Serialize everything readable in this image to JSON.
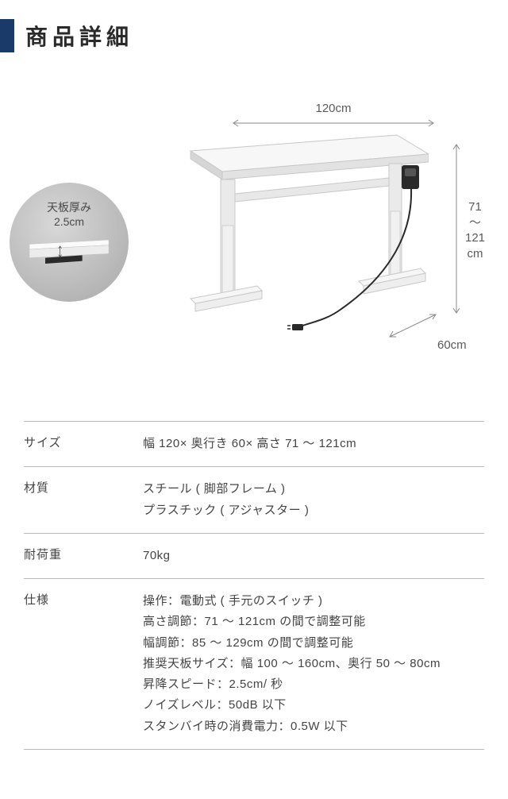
{
  "header": {
    "title": "商品詳細",
    "accent_color": "#1a3a6a",
    "title_color": "#2a2a2a"
  },
  "diagram": {
    "width_label": "120cm",
    "height_label": "71\n〜\n121\ncm",
    "depth_label": "60cm",
    "inset_label_line1": "天板厚み",
    "inset_label_line2": "2.5cm",
    "dim_line_color": "#8a8a8a",
    "desk_outline_color": "#bdbdbd",
    "desk_fill_light": "#f4f4f4",
    "desk_fill_mid": "#e4e4e4",
    "desk_fill_dark": "#d4d4d4",
    "inset_bg_outer": "#a8a8a8",
    "inset_bg_inner": "#d8d8d8"
  },
  "spec": {
    "rows": [
      {
        "label": "サイズ",
        "lines": [
          "幅 120× 奥行き 60× 高さ 71 〜 121cm"
        ]
      },
      {
        "label": "材質",
        "lines": [
          "スチール ( 脚部フレーム )",
          "プラスチック ( アジャスター )"
        ]
      },
      {
        "label": "耐荷重",
        "lines": [
          "70kg"
        ]
      },
      {
        "label": "仕様",
        "lines": [
          "操作：電動式 ( 手元のスイッチ )",
          "高さ調節：71 〜 121cm の間で調整可能",
          "幅調節：85 〜 129cm の間で調整可能",
          "推奨天板サイズ：幅 100 〜 160cm、奥行 50 〜 80cm",
          "昇降スピード：2.5cm/ 秒",
          "ノイズレベル：50dB 以下",
          "スタンバイ時の消費電力：0.5W 以下"
        ]
      }
    ],
    "border_color": "#bababa",
    "text_color": "#444444"
  }
}
